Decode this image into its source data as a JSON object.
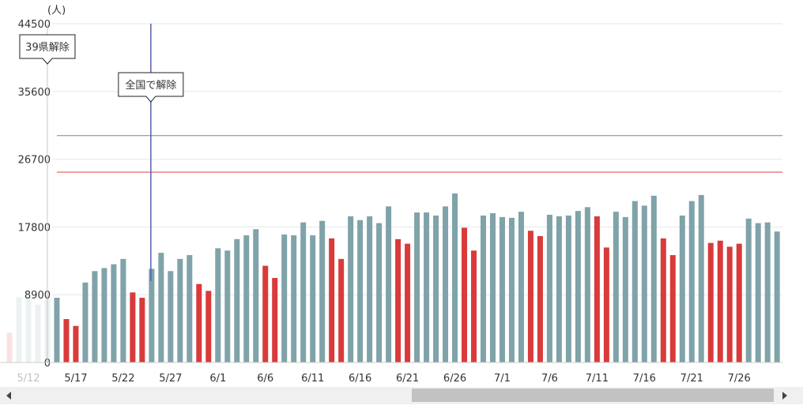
{
  "chart_data": {
    "type": "bar",
    "y_label": "(人)",
    "ylim": [
      0,
      44500
    ],
    "yticks": [
      0,
      8900,
      17800,
      26700,
      35600,
      44500
    ],
    "grid": true,
    "categories": [
      null,
      null,
      "5/12",
      null,
      null,
      null,
      null,
      "5/17",
      null,
      null,
      null,
      null,
      "5/22",
      null,
      null,
      null,
      null,
      "5/27",
      null,
      null,
      null,
      null,
      "6/1",
      null,
      null,
      null,
      null,
      "6/6",
      null,
      null,
      null,
      null,
      "6/11",
      null,
      null,
      null,
      null,
      "6/16",
      null,
      null,
      null,
      null,
      "6/21",
      null,
      null,
      null,
      null,
      "6/26",
      null,
      null,
      null,
      null,
      "7/1",
      null,
      null,
      null,
      null,
      "7/6",
      null,
      null,
      null,
      null,
      "7/11",
      null,
      null,
      null,
      null,
      "7/16",
      null,
      null,
      null,
      null,
      "7/21",
      null,
      null,
      null,
      null,
      "7/26",
      null,
      null,
      null,
      null
    ],
    "values": [
      3900,
      8600,
      8600,
      7600,
      8400,
      8500,
      5700,
      4800,
      10500,
      12000,
      12400,
      12900,
      13600,
      9200,
      8500,
      12300,
      14400,
      12000,
      13600,
      14100,
      10300,
      9400,
      15000,
      14700,
      16200,
      16700,
      17500,
      12700,
      11100,
      16800,
      16700,
      18400,
      16700,
      18600,
      16300,
      13600,
      19200,
      18700,
      19200,
      18300,
      20500,
      16200,
      15600,
      19700,
      19700,
      19300,
      20500,
      22200,
      17700,
      14700,
      19300,
      19600,
      19100,
      19000,
      19800,
      17300,
      16600,
      19400,
      19200,
      19300,
      19900,
      20400,
      19200,
      15100,
      19800,
      19100,
      21200,
      20600,
      21900,
      16300,
      14100,
      19300,
      21200,
      22000,
      15700,
      16000,
      15200,
      15600,
      18900,
      18300,
      18400,
      17200
    ],
    "colors": [
      "#d93a3a",
      "#7fa3a8",
      "#7fa3a8",
      "#7fa3a8",
      "#7fa3a8",
      "#7fa3a8",
      "#d93a3a",
      "#d93a3a",
      "#7fa3a8",
      "#7fa3a8",
      "#7fa3a8",
      "#7fa3a8",
      "#7fa3a8",
      "#d93a3a",
      "#d93a3a",
      "#7fa3a8",
      "#7fa3a8",
      "#7fa3a8",
      "#7fa3a8",
      "#7fa3a8",
      "#d93a3a",
      "#d93a3a",
      "#7fa3a8",
      "#7fa3a8",
      "#7fa3a8",
      "#7fa3a8",
      "#7fa3a8",
      "#d93a3a",
      "#d93a3a",
      "#7fa3a8",
      "#7fa3a8",
      "#7fa3a8",
      "#7fa3a8",
      "#7fa3a8",
      "#d93a3a",
      "#d93a3a",
      "#7fa3a8",
      "#7fa3a8",
      "#7fa3a8",
      "#7fa3a8",
      "#7fa3a8",
      "#d93a3a",
      "#d93a3a",
      "#7fa3a8",
      "#7fa3a8",
      "#7fa3a8",
      "#7fa3a8",
      "#7fa3a8",
      "#d93a3a",
      "#d93a3a",
      "#7fa3a8",
      "#7fa3a8",
      "#7fa3a8",
      "#7fa3a8",
      "#7fa3a8",
      "#d93a3a",
      "#d93a3a",
      "#7fa3a8",
      "#7fa3a8",
      "#7fa3a8",
      "#7fa3a8",
      "#7fa3a8",
      "#d93a3a",
      "#d93a3a",
      "#7fa3a8",
      "#7fa3a8",
      "#7fa3a8",
      "#7fa3a8",
      "#7fa3a8",
      "#d93a3a",
      "#d93a3a",
      "#7fa3a8",
      "#7fa3a8",
      "#7fa3a8",
      "#d93a3a",
      "#d93a3a",
      "#d93a3a",
      "#d93a3a",
      "#7fa3a8",
      "#7fa3a8",
      "#7fa3a8",
      "#7fa3a8"
    ],
    "reference_lines": [
      {
        "value": 29800,
        "color": "#6f8a8e"
      },
      {
        "value": 25000,
        "color": "#e04040"
      }
    ],
    "annotations": [
      {
        "text": "39県解除",
        "category_index": 4,
        "color": "#bbbbbb"
      },
      {
        "text": "全国で解除",
        "category_index": 15,
        "color": "#5560b0"
      }
    ]
  }
}
